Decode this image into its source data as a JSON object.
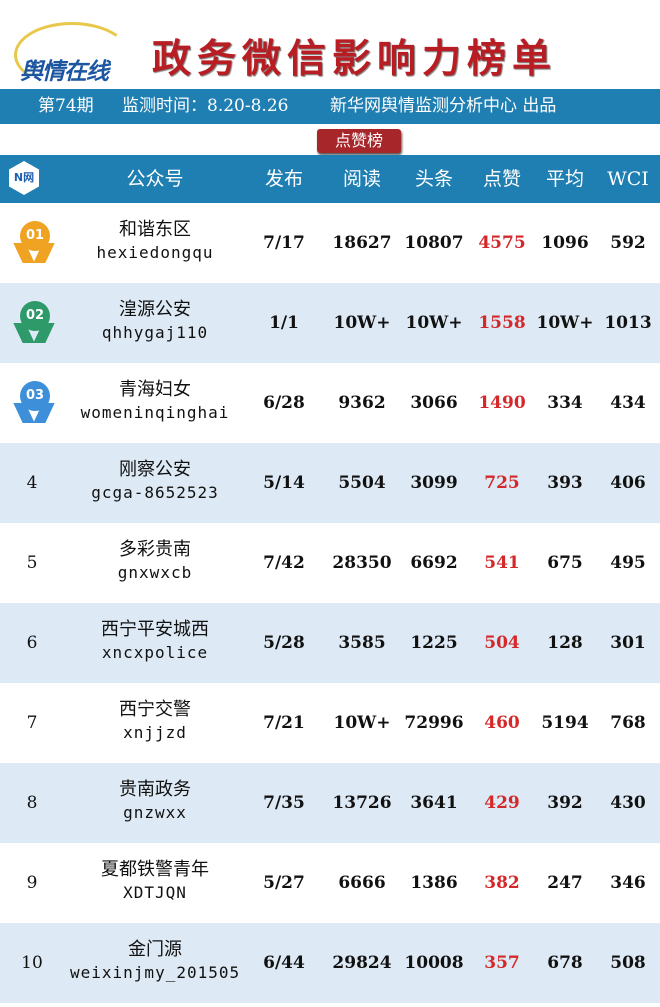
{
  "header": {
    "logo_text": "舆情在线",
    "title": "政务微信影响力榜单"
  },
  "band": {
    "issue": "第74期",
    "period": "监测时间：8.20-8.26",
    "producer": "新华网舆情监测分析中心 出品"
  },
  "ranking_tab": "点赞榜",
  "table": {
    "logo_text": "N网",
    "columns": [
      "公众号",
      "发布",
      "阅读",
      "头条",
      "点赞",
      "平均",
      "WCI"
    ],
    "rows": [
      {
        "rank": "01",
        "name": "和谐东区",
        "id": "hexiedongqu",
        "publish": "7/17",
        "read": "18627",
        "headline": "10807",
        "likes": "4575",
        "avg": "1096",
        "wci": "592",
        "medal": "#f0a322"
      },
      {
        "rank": "02",
        "name": "湟源公安",
        "id": "qhhygaj110",
        "publish": "1/1",
        "read": "10W+",
        "headline": "10W+",
        "likes": "1558",
        "avg": "10W+",
        "wci": "1013",
        "medal": "#2e9a6a"
      },
      {
        "rank": "03",
        "name": "青海妇女",
        "id": "womeninqinghai",
        "publish": "6/28",
        "read": "9362",
        "headline": "3066",
        "likes": "1490",
        "avg": "334",
        "wci": "434",
        "medal": "#3c8fd8"
      },
      {
        "rank": "4",
        "name": "刚察公安",
        "id": "gcga-8652523",
        "publish": "5/14",
        "read": "5504",
        "headline": "3099",
        "likes": "725",
        "avg": "393",
        "wci": "406"
      },
      {
        "rank": "5",
        "name": "多彩贵南",
        "id": "gnxwxcb",
        "publish": "7/42",
        "read": "28350",
        "headline": "6692",
        "likes": "541",
        "avg": "675",
        "wci": "495"
      },
      {
        "rank": "6",
        "name": "西宁平安城西",
        "id": "xncxpolice",
        "publish": "5/28",
        "read": "3585",
        "headline": "1225",
        "likes": "504",
        "avg": "128",
        "wci": "301"
      },
      {
        "rank": "7",
        "name": "西宁交警",
        "id": "xnjjzd",
        "publish": "7/21",
        "read": "10W+",
        "headline": "72996",
        "likes": "460",
        "avg": "5194",
        "wci": "768"
      },
      {
        "rank": "8",
        "name": "贵南政务",
        "id": "gnzwxx",
        "publish": "7/35",
        "read": "13726",
        "headline": "3641",
        "likes": "429",
        "avg": "392",
        "wci": "430"
      },
      {
        "rank": "9",
        "name": "夏都铁警青年",
        "id": "XDTJQN",
        "publish": "5/27",
        "read": "6666",
        "headline": "1386",
        "likes": "382",
        "avg": "247",
        "wci": "346"
      },
      {
        "rank": "10",
        "name": "金门源",
        "id": "weixinjmy_201505",
        "publish": "6/44",
        "read": "29824",
        "headline": "10008",
        "likes": "357",
        "avg": "678",
        "wci": "508"
      }
    ]
  }
}
